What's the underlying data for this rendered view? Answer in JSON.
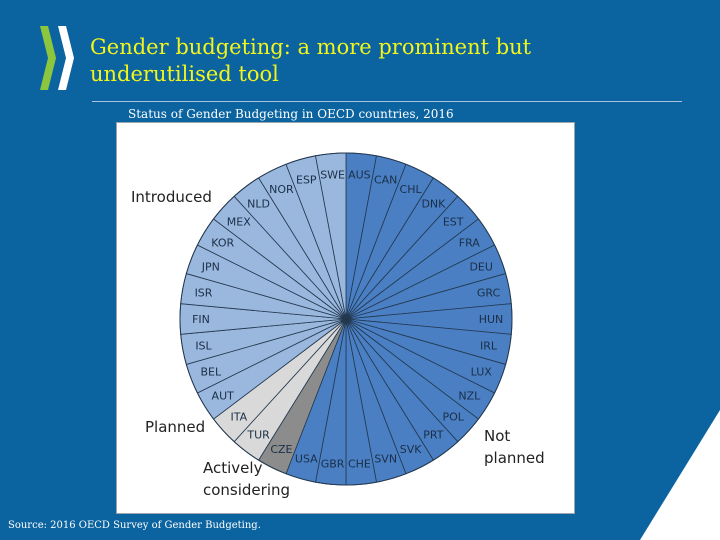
{
  "slide": {
    "title_line1": "Gender budgeting: a more prominent but",
    "title_line2": "underutilised tool",
    "subtitle": "Status of Gender Budgeting in OECD  countries, 2016",
    "source": "Source: 2016 OECD Survey of Gender Budgeting."
  },
  "colors": {
    "background": "#0b63a0",
    "title": "#f2f51c",
    "introduced": "#9ab7dd",
    "planned": "#d9d9d9",
    "actively_considering": "#8c8c8c",
    "not_planned": "#4a7fc4"
  },
  "chart_data": {
    "type": "pie",
    "title": "Status of Gender Budgeting in OECD  countries, 2016",
    "categories": [
      "AUS",
      "CAN",
      "CHL",
      "DNK",
      "EST",
      "FRA",
      "DEU",
      "GRC",
      "HUN",
      "IRL",
      "LUX",
      "NZL",
      "POL",
      "PRT",
      "SVK",
      "SVN",
      "CHE",
      "GBR",
      "USA",
      "CZE",
      "TUR",
      "ITA",
      "AUT",
      "BEL",
      "ISL",
      "FIN",
      "ISR",
      "JPN",
      "KOR",
      "MEX",
      "NLD",
      "NOR",
      "ESP",
      "SWE"
    ],
    "status": [
      "Not planned",
      "Not planned",
      "Not planned",
      "Not planned",
      "Not planned",
      "Not planned",
      "Not planned",
      "Not planned",
      "Not planned",
      "Not planned",
      "Not planned",
      "Not planned",
      "Not planned",
      "Not planned",
      "Not planned",
      "Not planned",
      "Not planned",
      "Not planned",
      "Not planned",
      "Actively considering",
      "Planned",
      "Planned",
      "Introduced",
      "Introduced",
      "Introduced",
      "Introduced",
      "Introduced",
      "Introduced",
      "Introduced",
      "Introduced",
      "Introduced",
      "Introduced",
      "Introduced",
      "Introduced"
    ],
    "values": [
      1,
      1,
      1,
      1,
      1,
      1,
      1,
      1,
      1,
      1,
      1,
      1,
      1,
      1,
      1,
      1,
      1,
      1,
      1,
      1,
      1,
      1,
      1,
      1,
      1,
      1,
      1,
      1,
      1,
      1,
      1,
      1,
      1,
      1
    ],
    "groups": [
      {
        "name": "Introduced",
        "count": 12
      },
      {
        "name": "Planned",
        "count": 2
      },
      {
        "name": "Actively considering",
        "count": 1
      },
      {
        "name": "Not planned",
        "count": 19
      }
    ],
    "group_labels": {
      "introduced": "Introduced",
      "planned": "Planned",
      "actively_line1": "Actively",
      "actively_line2": "considering",
      "not_planned_line1": "Not",
      "not_planned_line2": "planned"
    },
    "slice_colors": {
      "Introduced": "#9ab7dd",
      "Planned": "#d9d9d9",
      "Actively considering": "#8c8c8c",
      "Not planned": "#4a7fc4"
    },
    "start": "12 o'clock",
    "direction": "clockwise",
    "legend": "none"
  }
}
